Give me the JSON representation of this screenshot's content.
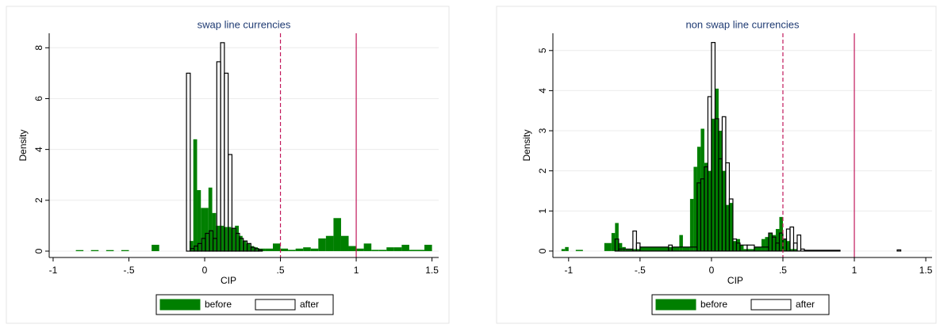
{
  "chart_data": [
    {
      "type": "histogram",
      "title": "swap line currencies",
      "xlabel": "CIP",
      "ylabel": "Density",
      "xlim": [
        -1.026,
        1.544
      ],
      "ylim": [
        -0.25,
        8.57
      ],
      "xticks": [
        {
          "value": -1,
          "label": "-1"
        },
        {
          "value": -0.5,
          "label": "-.5"
        },
        0,
        {
          "value": 0.5,
          "label": ".5"
        },
        1,
        1.5
      ],
      "yticks": [
        0,
        2,
        4,
        6,
        8
      ],
      "grid": true,
      "legend": "bottom",
      "xlines": [
        {
          "value": 0.5,
          "style": "dashed",
          "color": "#c2185b"
        },
        {
          "value": 1,
          "style": "solid",
          "color": "#c2185b"
        }
      ],
      "series": [
        {
          "name": "before",
          "color": "#007f00",
          "filled": true,
          "bins": [
            -0.85,
            -0.8,
            -0.75,
            -0.7,
            -0.65,
            -0.6,
            -0.55,
            -0.5,
            -0.45,
            -0.4,
            -0.35,
            -0.3,
            -0.25,
            -0.2,
            -0.15,
            -0.1,
            -0.075,
            -0.05,
            -0.025,
            0,
            0.025,
            0.05,
            0.075,
            0.1,
            0.125,
            0.15,
            0.175,
            0.2,
            0.225,
            0.25,
            0.275,
            0.3,
            0.325,
            0.35,
            0.4,
            0.45,
            0.5,
            0.55,
            0.6,
            0.65,
            0.7,
            0.75,
            0.8,
            0.85,
            0.9,
            0.95,
            1.0,
            1.05,
            1.1,
            1.15,
            1.2,
            1.25,
            1.3,
            1.35,
            1.4,
            1.45,
            1.5
          ],
          "values": [
            0.04,
            0,
            0.04,
            0,
            0.04,
            0,
            0.04,
            0,
            0,
            0,
            0.25,
            0,
            0,
            0,
            0,
            0.4,
            4.4,
            2.4,
            1.7,
            1.7,
            2.5,
            1.5,
            1.0,
            1.0,
            0.95,
            0.95,
            0.9,
            1.0,
            0.6,
            0.4,
            0.3,
            0.2,
            0.15,
            0.1,
            0.1,
            0.3,
            0.1,
            0.05,
            0.1,
            0.15,
            0.1,
            0.5,
            0.6,
            1.3,
            0.6,
            0.2,
            0.1,
            0.3,
            0.05,
            0.05,
            0.15,
            0.15,
            0.25,
            0.05,
            0.05,
            0.25
          ]
        },
        {
          "name": "after",
          "color": "#000000",
          "filled": false,
          "bins": [
            -0.12,
            -0.095,
            -0.07,
            -0.045,
            -0.02,
            0.005,
            0.03,
            0.055,
            0.08,
            0.105,
            0.13,
            0.155,
            0.18,
            0.205,
            0.23,
            0.255,
            0.28,
            0.305,
            0.33,
            0.355,
            0.38
          ],
          "values": [
            7.0,
            0.1,
            0.2,
            0.3,
            0.5,
            0.7,
            0.8,
            0.5,
            7.45,
            8.2,
            7.0,
            3.8,
            0.9,
            0.7,
            0.5,
            0.4,
            0.3,
            0.15,
            0.1,
            0.05
          ]
        }
      ]
    },
    {
      "type": "histogram",
      "title": "non swap line currencies",
      "xlabel": "CIP",
      "ylabel": "Density",
      "xlim": [
        -1.11,
        1.544
      ],
      "ylim": [
        -0.16,
        5.43
      ],
      "xticks": [
        {
          "value": -1,
          "label": "-1"
        },
        {
          "value": -0.5,
          "label": "-.5"
        },
        0,
        {
          "value": 0.5,
          "label": ".5"
        },
        1,
        1.5
      ],
      "yticks": [
        0,
        1,
        2,
        3,
        4,
        5
      ],
      "grid": true,
      "legend": "bottom",
      "xlines": [
        {
          "value": 0.5,
          "style": "dashed",
          "color": "#c2185b"
        },
        {
          "value": 1,
          "style": "solid",
          "color": "#c2185b"
        }
      ],
      "series": [
        {
          "name": "before",
          "color": "#007f00",
          "filled": true,
          "bins": [
            -1.05,
            -1.025,
            -1.0,
            -0.95,
            -0.9,
            -0.75,
            -0.7,
            -0.675,
            -0.65,
            -0.625,
            -0.6,
            -0.5,
            -0.3,
            -0.225,
            -0.2,
            -0.15,
            -0.125,
            -0.1,
            -0.075,
            -0.05,
            -0.025,
            0,
            0.025,
            0.05,
            0.075,
            0.1,
            0.125,
            0.15,
            0.175,
            0.2,
            0.225,
            0.3,
            0.35,
            0.375,
            0.4,
            0.425,
            0.45,
            0.475,
            0.5,
            0.525,
            0.55,
            0.6
          ],
          "values": [
            0.05,
            0.1,
            0,
            0.03,
            0,
            0.2,
            0.45,
            0.7,
            0.2,
            0.1,
            0.05,
            0.1,
            0.1,
            0.4,
            0.1,
            1.3,
            2.1,
            2.6,
            3.05,
            2.2,
            2.0,
            3.3,
            4.05,
            3.0,
            2.0,
            1.15,
            1.2,
            0.25,
            0.3,
            0.15,
            0.05,
            0.1,
            0.3,
            0.35,
            0.45,
            0.4,
            0.55,
            0.85,
            0.3,
            0.25,
            0.05
          ]
        },
        {
          "name": "after",
          "color": "#000000",
          "filled": false,
          "bins": [
            -0.675,
            -0.65,
            -0.55,
            -0.525,
            -0.5,
            -0.3,
            -0.275,
            -0.1,
            -0.075,
            -0.05,
            -0.025,
            0,
            0.025,
            0.05,
            0.075,
            0.1,
            0.125,
            0.15,
            0.175,
            0.2,
            0.25,
            0.3,
            0.4,
            0.425,
            0.45,
            0.475,
            0.5,
            0.525,
            0.55,
            0.575,
            0.6,
            0.625,
            0.65,
            0.9,
            1.3,
            1.325
          ],
          "values": [
            0.3,
            0.05,
            0.5,
            0.2,
            0.1,
            0.15,
            0.1,
            1.7,
            1.8,
            2.1,
            3.85,
            5.2,
            3.3,
            2.3,
            3.35,
            2.2,
            1.3,
            0.3,
            0.2,
            0.15,
            0.15,
            0.1,
            0.45,
            0.35,
            0.2,
            0.45,
            0.3,
            0.55,
            0.6,
            0.2,
            0.4,
            0.05,
            0.02,
            0,
            0.03
          ]
        }
      ]
    }
  ]
}
